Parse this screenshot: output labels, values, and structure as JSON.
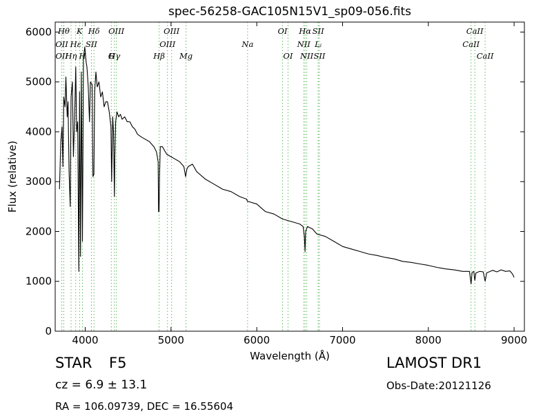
{
  "chart_data": {
    "type": "line",
    "title": "spec-56258-GAC105N15V1_sp09-056.fits",
    "xlabel": "Wavelength (Å)",
    "ylabel": "Flux (relative)",
    "xlim": [
      3650,
      9120
    ],
    "ylim": [
      0,
      6200
    ],
    "xticks": [
      4000,
      5000,
      6000,
      7000,
      8000,
      9000
    ],
    "yticks": [
      0,
      1000,
      2000,
      3000,
      4000,
      5000,
      6000
    ],
    "grid": false,
    "series": [
      {
        "x": [
          3700,
          3715,
          3730,
          3740,
          3750,
          3765,
          3775,
          3790,
          3800,
          3812,
          3825,
          3835,
          3850,
          3862,
          3875,
          3890,
          3900,
          3912,
          3925,
          3934,
          3945,
          3955,
          3968,
          3980,
          3995,
          4010,
          4020,
          4035,
          4050,
          4060,
          4080,
          4090,
          4101,
          4110,
          4125,
          4140,
          4160,
          4180,
          4200,
          4220,
          4240,
          4260,
          4280,
          4300,
          4308,
          4320,
          4330,
          4340,
          4345,
          4355,
          4370,
          4390,
          4410,
          4430,
          4460,
          4490,
          4520,
          4550,
          4580,
          4610,
          4650,
          4700,
          4750,
          4800,
          4830,
          4850,
          4855,
          4861,
          4866,
          4875,
          4900,
          4950,
          5000,
          5050,
          5100,
          5150,
          5170,
          5175,
          5185,
          5200,
          5250,
          5300,
          5400,
          5500,
          5600,
          5700,
          5800,
          5880,
          5893,
          5905,
          6000,
          6100,
          6200,
          6300,
          6400,
          6500,
          6540,
          6555,
          6563,
          6570,
          6590,
          6650,
          6700,
          6800,
          6900,
          7000,
          7100,
          7200,
          7300,
          7400,
          7500,
          7600,
          7700,
          7800,
          7900,
          8000,
          8100,
          8200,
          8300,
          8400,
          8480,
          8498,
          8510,
          8530,
          8542,
          8555,
          8600,
          8640,
          8662,
          8680,
          8750,
          8800,
          8850,
          8900,
          8950,
          8980,
          9000
        ],
        "y": [
          2850,
          3800,
          4100,
          3300,
          4700,
          4500,
          5100,
          4300,
          4600,
          3200,
          2500,
          4700,
          5000,
          3500,
          4200,
          5300,
          4000,
          4200,
          1200,
          4800,
          1500,
          5200,
          1800,
          5500,
          5700,
          5400,
          5300,
          4900,
          4200,
          5000,
          4950,
          3100,
          3150,
          4800,
          5200,
          4900,
          5000,
          4700,
          4800,
          4500,
          4600,
          4600,
          4400,
          4100,
          3000,
          4300,
          4000,
          2700,
          3500,
          4200,
          4400,
          4300,
          4350,
          4250,
          4300,
          4200,
          4200,
          4100,
          4050,
          3950,
          3900,
          3850,
          3800,
          3700,
          3600,
          3400,
          2400,
          2400,
          3100,
          3700,
          3700,
          3550,
          3500,
          3450,
          3400,
          3300,
          3100,
          3150,
          3250,
          3300,
          3350,
          3200,
          3050,
          2950,
          2850,
          2800,
          2700,
          2650,
          2600,
          2600,
          2550,
          2400,
          2350,
          2250,
          2200,
          2150,
          2100,
          1900,
          1600,
          2000,
          2100,
          2050,
          1950,
          1900,
          1800,
          1700,
          1650,
          1600,
          1550,
          1520,
          1480,
          1450,
          1400,
          1380,
          1350,
          1320,
          1280,
          1250,
          1230,
          1200,
          1200,
          950,
          1180,
          1200,
          1020,
          1170,
          1200,
          1190,
          1000,
          1170,
          1220,
          1190,
          1230,
          1200,
          1210,
          1150,
          1080
        ]
      }
    ],
    "spectral_lines": [
      {
        "x": 3727,
        "label": "OII",
        "row": 2
      },
      {
        "x": 3727,
        "label": "OII",
        "row": 1
      },
      {
        "x": 3750,
        "label": "Hθ",
        "row": 0
      },
      {
        "x": 3835,
        "label": "Hη",
        "row": 2
      },
      {
        "x": 3889,
        "label": "Hε",
        "row": 1
      },
      {
        "x": 3934,
        "label": "K",
        "row": 0
      },
      {
        "x": 3968,
        "label": "H",
        "row": 3
      },
      {
        "x": 4072,
        "label": "SII",
        "row": 1
      },
      {
        "x": 4102,
        "label": "Hδ",
        "row": 0
      },
      {
        "x": 4304,
        "label": "G",
        "row": 3
      },
      {
        "x": 4340,
        "label": "Hγ",
        "row": 2
      },
      {
        "x": 4363,
        "label": "OIII",
        "row": 0
      },
      {
        "x": 4861,
        "label": "Hβ",
        "row": 3
      },
      {
        "x": 4959,
        "label": "OIII",
        "row": 1
      },
      {
        "x": 5007,
        "label": "OIII",
        "row": 0
      },
      {
        "x": 5175,
        "label": "Mg",
        "row": 3
      },
      {
        "x": 5893,
        "label": "Na",
        "row": 1
      },
      {
        "x": 6300,
        "label": "OI",
        "row": 0
      },
      {
        "x": 6364,
        "label": "OI",
        "row": 3
      },
      {
        "x": 6548,
        "label": "NII",
        "row": 1
      },
      {
        "x": 6563,
        "label": "Hα",
        "row": 0
      },
      {
        "x": 6583,
        "label": "NII",
        "row": 3
      },
      {
        "x": 6716,
        "label": "SII",
        "row": 0
      },
      {
        "x": 6716,
        "label": "Lᵢ",
        "row": 1
      },
      {
        "x": 6731,
        "label": "SII",
        "row": 3
      },
      {
        "x": 8498,
        "label": "CaII",
        "row": 1
      },
      {
        "x": 8542,
        "label": "CaII",
        "row": 0
      },
      {
        "x": 8662,
        "label": "CaII",
        "row": 3
      }
    ]
  },
  "info": {
    "class": "STAR",
    "subclass": "F5",
    "cz": "cz = 6.9 ± 13.1",
    "survey": "LAMOST DR1",
    "obs_date": "Obs-Date:20121126",
    "coords": "RA = 106.09739, DEC = 16.55604"
  },
  "colors": {
    "spectrum": "#000000",
    "line_markers": "#5cb85c",
    "axes": "#000000"
  }
}
